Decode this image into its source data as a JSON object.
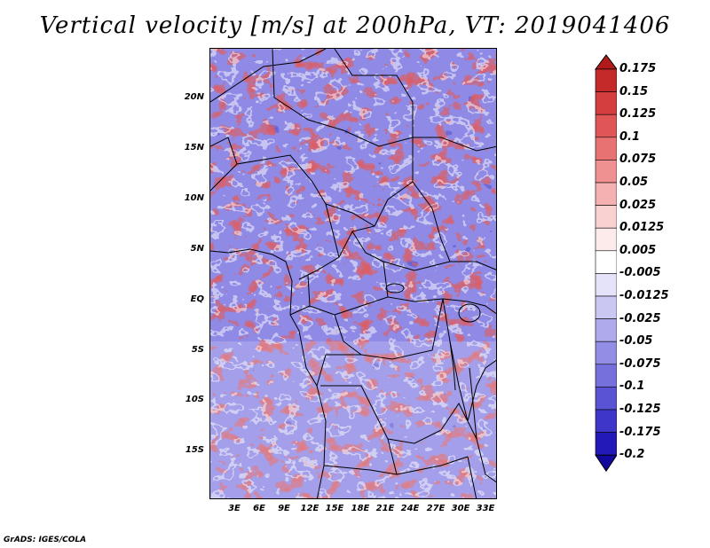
{
  "title": "Vertical velocity [m/s] at 200hPa, VT: 2019041406",
  "credit": "GrADS: IGES/COLA",
  "y_labels": [
    "20N",
    "15N",
    "10N",
    "5N",
    "EQ",
    "5S",
    "10S",
    "15S"
  ],
  "x_labels": [
    "3E",
    "6E",
    "9E",
    "12E",
    "15E",
    "18E",
    "21E",
    "24E",
    "27E",
    "30E",
    "33E"
  ],
  "colorbar": {
    "labels": [
      "0.175",
      "0.15",
      "0.125",
      "0.1",
      "0.075",
      "0.05",
      "0.025",
      "0.0125",
      "0.005",
      "-0.005",
      "-0.0125",
      "-0.025",
      "-0.05",
      "-0.075",
      "-0.1",
      "-0.125",
      "-0.175",
      "-0.2"
    ],
    "colors": [
      "#b01a1a",
      "#c42a2a",
      "#d43e3e",
      "#e05656",
      "#e87272",
      "#ef9191",
      "#f5b1b1",
      "#fad1d1",
      "#fdeaea",
      "#ffffff",
      "#e4e3f9",
      "#cac8f3",
      "#aeaaec",
      "#928de5",
      "#7670dd",
      "#5a53d4",
      "#3d36c9",
      "#2219b8",
      "#12089e"
    ]
  }
}
